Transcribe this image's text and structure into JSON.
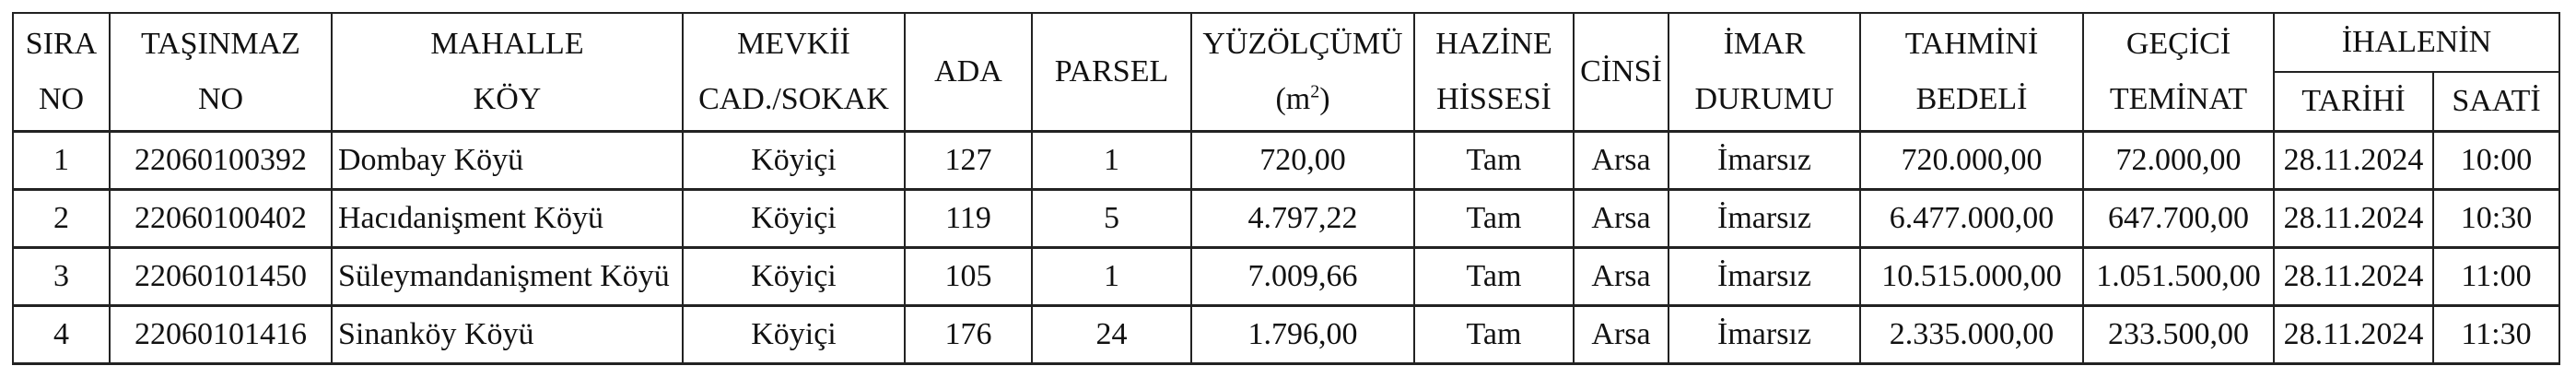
{
  "headers": {
    "sira": [
      "SIRA",
      "NO"
    ],
    "tasinmaz": [
      "TAŞINMAZ",
      "NO"
    ],
    "mahalle": [
      "MAHALLE",
      "KÖY"
    ],
    "mevkii": [
      "MEVKİİ",
      "CAD./SOKAK"
    ],
    "ada": "ADA",
    "parsel": "PARSEL",
    "yuzolcumu": [
      "YÜZÖLÇÜMÜ",
      "(m",
      "2",
      ")"
    ],
    "hazine": [
      "HAZİNE",
      "HİSSESİ"
    ],
    "cinsi": "CİNSİ",
    "imar": [
      "İMAR",
      "DURUMU"
    ],
    "tahmini": [
      "TAHMİNİ",
      "BEDELİ"
    ],
    "gecici": [
      "GEÇİCİ",
      "TEMİNAT"
    ],
    "ihalenin": "İHALENİN",
    "tarihi": "TARİHİ",
    "saati": "SAATİ"
  },
  "rows": [
    {
      "sira": "1",
      "tasinmaz": "22060100392",
      "mahalle": "Dombay Köyü",
      "mevkii": "Köyiçi",
      "ada": "127",
      "parsel": "1",
      "yuzolcumu": "720,00",
      "hazine": "Tam",
      "cinsi": "Arsa",
      "imar": "İmarsız",
      "tahmini": "720.000,00",
      "gecici": "72.000,00",
      "tarihi": "28.11.2024",
      "saati": "10:00"
    },
    {
      "sira": "2",
      "tasinmaz": "22060100402",
      "mahalle": "Hacıdanişment Köyü",
      "mevkii": "Köyiçi",
      "ada": "119",
      "parsel": "5",
      "yuzolcumu": "4.797,22",
      "hazine": "Tam",
      "cinsi": "Arsa",
      "imar": "İmarsız",
      "tahmini": "6.477.000,00",
      "gecici": "647.700,00",
      "tarihi": "28.11.2024",
      "saati": "10:30"
    },
    {
      "sira": "3",
      "tasinmaz": "22060101450",
      "mahalle": "Süleymandanişment Köyü",
      "mevkii": "Köyiçi",
      "ada": "105",
      "parsel": "1",
      "yuzolcumu": "7.009,66",
      "hazine": "Tam",
      "cinsi": "Arsa",
      "imar": "İmarsız",
      "tahmini": "10.515.000,00",
      "gecici": "1.051.500,00",
      "tarihi": "28.11.2024",
      "saati": "11:00"
    },
    {
      "sira": "4",
      "tasinmaz": "22060101416",
      "mahalle": "Sinanköy Köyü",
      "mevkii": "Köyiçi",
      "ada": "176",
      "parsel": "24",
      "yuzolcumu": "1.796,00",
      "hazine": "Tam",
      "cinsi": "Arsa",
      "imar": "İmarsız",
      "tahmini": "2.335.000,00",
      "gecici": "233.500,00",
      "tarihi": "28.11.2024",
      "saati": "11:30"
    }
  ]
}
